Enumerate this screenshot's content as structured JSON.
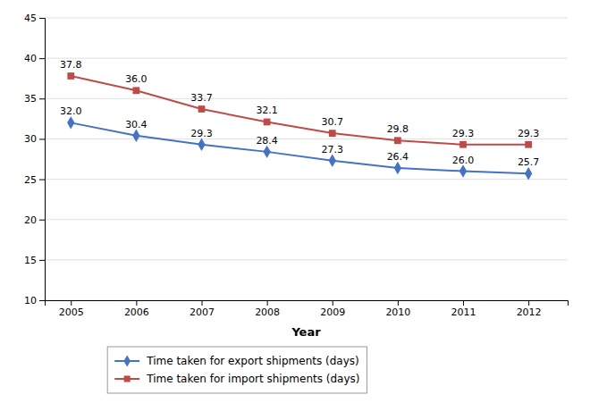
{
  "chart_data": {
    "type": "line",
    "x": [
      2005,
      2006,
      2007,
      2008,
      2009,
      2010,
      2011,
      2012
    ],
    "xlabel": "Year",
    "xlim": [
      2004.6,
      2012.6
    ],
    "xticks": [
      2005,
      2006,
      2007,
      2008,
      2009,
      2010,
      2011,
      2012
    ],
    "ylim": [
      10,
      45
    ],
    "yticks": [
      10,
      15,
      20,
      25,
      30,
      35,
      40,
      45
    ],
    "grid": true,
    "legend": "bottom",
    "data_labels": true,
    "series": [
      {
        "name": "Time taken for export shipments (days)",
        "color": "#4472C4",
        "marker": "diamond",
        "values": [
          32.0,
          30.4,
          29.3,
          28.4,
          27.3,
          26.4,
          26.0,
          25.7
        ],
        "value_labels": [
          "32.0",
          "30.4",
          "29.3",
          "28.4",
          "27.3",
          "26.4",
          "26.0",
          "25.7"
        ]
      },
      {
        "name": "Time taken for import shipments (days)",
        "color": "#BE4B48",
        "marker": "square",
        "values": [
          37.8,
          36.0,
          33.7,
          32.1,
          30.7,
          29.8,
          29.3,
          29.3
        ],
        "value_labels": [
          "37.8",
          "36.0",
          "33.7",
          "32.1",
          "30.7",
          "29.8",
          "29.3",
          "29.3"
        ]
      }
    ]
  }
}
